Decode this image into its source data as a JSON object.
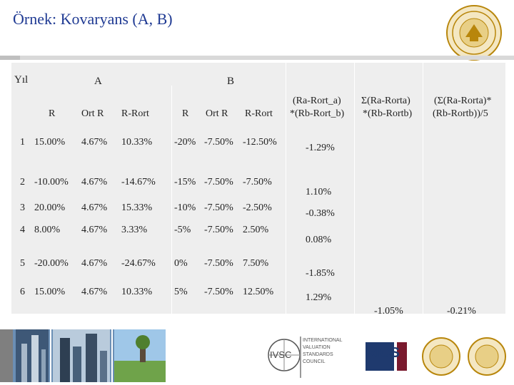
{
  "title": "Örnek: Kovaryans (A, B)",
  "table": {
    "col_yil": "Yıl",
    "col_a": "A",
    "col_b": "B",
    "sub_r_a": "R",
    "sub_ort_a": "Ort R",
    "sub_rort_a": "R-Rort",
    "sub_r_b": "R",
    "sub_ort_b": "Ort R",
    "sub_rort_b": "R-Rort",
    "h_prod_line1": "(Ra-Rort_a)",
    "h_prod_line2": "*(Rb-Rort_b)",
    "h_sum_line1": "Σ(Ra-Rorta)",
    "h_sum_line2": "*(Rb-Rortb)",
    "h_cov_line1": "(Σ(Ra-Rorta)*",
    "h_cov_line2": "(Rb-Rortb))/5",
    "rows": [
      {
        "yil": "1",
        "ra": "15.00%",
        "orta": "4.67%",
        "rorta": "10.33%",
        "rb": "-20%",
        "ortb": "-7.50%",
        "rortb": "-12.50%",
        "prod": "-1.29%"
      },
      {
        "yil": "2",
        "ra": "-10.00%",
        "orta": "4.67%",
        "rorta": "-14.67%",
        "rb": "-15%",
        "ortb": "-7.50%",
        "rortb": "-7.50%",
        "prod": "1.10%"
      },
      {
        "yil": "3",
        "ra": "20.00%",
        "orta": "4.67%",
        "rorta": "15.33%",
        "rb": "-10%",
        "ortb": "-7.50%",
        "rortb": "-2.50%",
        "prod": "-0.38%"
      },
      {
        "yil": "4",
        "ra": "8.00%",
        "orta": "4.67%",
        "rorta": "3.33%",
        "rb": "-5%",
        "ortb": "-7.50%",
        "rortb": "2.50%",
        "prod": "0.08%"
      },
      {
        "yil": "5",
        "ra": "-20.00%",
        "orta": "4.67%",
        "rorta": "-24.67%",
        "rb": "0%",
        "ortb": "-7.50%",
        "rortb": "7.50%",
        "prod": "-1.85%"
      },
      {
        "yil": "6",
        "ra": "15.00%",
        "orta": "4.67%",
        "rorta": "10.33%",
        "rb": "5%",
        "ortb": "-7.50%",
        "rortb": "12.50%",
        "prod": "1.29%"
      }
    ],
    "total_sum": "-1.05%",
    "total_cov": "-0.21%"
  },
  "footer": {
    "ivsc_text": "IVSC",
    "ivsc_sub_1": "INTERNATIONAL",
    "ivsc_sub_2": "VALUATION",
    "ivsc_sub_3": "STANDARDS",
    "ivsc_sub_4": "COUNCIL",
    "rics_text": "RICS"
  },
  "colors": {
    "title": "#1f3a93",
    "table_bg": "#eeeeee",
    "rics_blue": "#1f3a6e",
    "seal_gold": "#b8860b"
  }
}
